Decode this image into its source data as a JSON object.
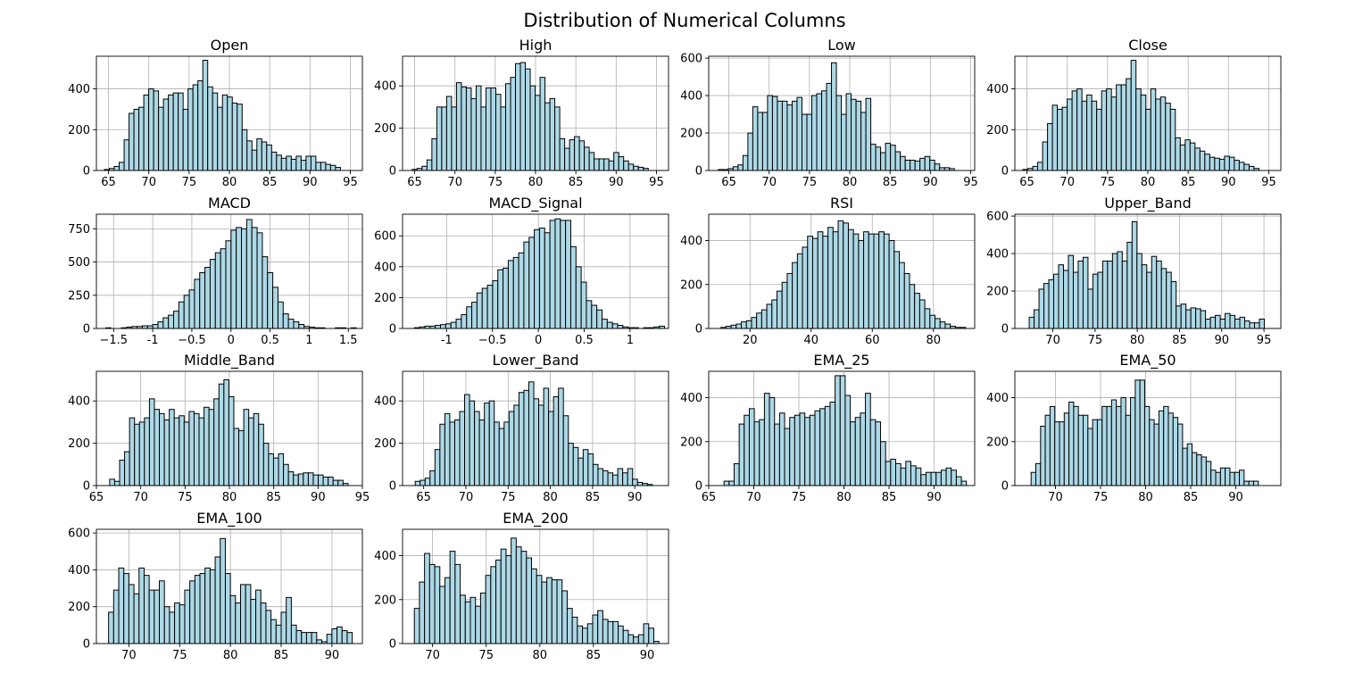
{
  "figure": {
    "title": "Distribution of Numerical Columns"
  },
  "style": {
    "bar_fill": "#add8e6",
    "bar_edge": "#000000",
    "grid": "#b0b0b0"
  },
  "chart_data": [
    {
      "type": "bar",
      "title": "Open",
      "xlim": [
        63.5,
        96.5
      ],
      "ylim": [
        0,
        560
      ],
      "grid": true,
      "xticks": [
        65,
        70,
        75,
        80,
        85,
        90,
        95
      ],
      "yticks": [
        0,
        200,
        400
      ],
      "bin_start": 64.5,
      "bin_width": 0.61,
      "values": [
        5,
        10,
        20,
        40,
        150,
        280,
        300,
        310,
        370,
        400,
        390,
        310,
        350,
        370,
        380,
        380,
        300,
        400,
        420,
        440,
        540,
        410,
        380,
        310,
        370,
        360,
        330,
        325,
        200,
        145,
        100,
        155,
        140,
        125,
        90,
        75,
        60,
        70,
        55,
        70,
        50,
        70,
        70,
        40,
        40,
        30,
        25,
        15
      ]
    },
    {
      "type": "bar",
      "title": "High",
      "xlim": [
        63.5,
        96.5
      ],
      "ylim": [
        0,
        540
      ],
      "grid": true,
      "xticks": [
        65,
        70,
        75,
        80,
        85,
        90,
        95
      ],
      "yticks": [
        0,
        200,
        400
      ],
      "bin_start": 64.7,
      "bin_width": 0.61,
      "values": [
        5,
        10,
        20,
        50,
        150,
        300,
        300,
        350,
        300,
        415,
        395,
        390,
        340,
        400,
        300,
        390,
        390,
        360,
        300,
        410,
        440,
        505,
        510,
        480,
        400,
        355,
        440,
        320,
        340,
        300,
        150,
        105,
        145,
        160,
        140,
        110,
        85,
        55,
        55,
        55,
        45,
        85,
        65,
        45,
        30,
        20,
        15,
        10
      ]
    },
    {
      "type": "bar",
      "title": "Low",
      "xlim": [
        62.5,
        95.5
      ],
      "ylim": [
        0,
        610
      ],
      "grid": true,
      "xticks": [
        65,
        70,
        75,
        80,
        85,
        90,
        95
      ],
      "yticks": [
        0,
        200,
        400,
        600
      ],
      "bin_start": 63.7,
      "bin_width": 0.61,
      "values": [
        5,
        5,
        10,
        20,
        30,
        80,
        200,
        340,
        310,
        310,
        400,
        395,
        370,
        370,
        350,
        370,
        390,
        300,
        300,
        400,
        410,
        425,
        465,
        575,
        400,
        300,
        410,
        380,
        370,
        310,
        385,
        140,
        125,
        95,
        145,
        135,
        100,
        75,
        55,
        55,
        50,
        65,
        75,
        55,
        35,
        15,
        15,
        10
      ]
    },
    {
      "type": "bar",
      "title": "Close",
      "xlim": [
        63.5,
        96.5
      ],
      "ylim": [
        0,
        560
      ],
      "grid": true,
      "xticks": [
        65,
        70,
        75,
        80,
        85,
        90,
        95
      ],
      "yticks": [
        0,
        200,
        400
      ],
      "bin_start": 64.5,
      "bin_width": 0.61,
      "values": [
        5,
        10,
        20,
        40,
        140,
        230,
        320,
        300,
        310,
        350,
        390,
        400,
        340,
        370,
        340,
        300,
        390,
        400,
        360,
        420,
        420,
        450,
        540,
        400,
        370,
        300,
        400,
        350,
        360,
        330,
        300,
        160,
        125,
        150,
        135,
        110,
        95,
        80,
        65,
        60,
        55,
        70,
        65,
        50,
        40,
        30,
        20,
        10
      ]
    },
    {
      "type": "bar",
      "title": "MACD",
      "xlim": [
        -1.72,
        1.68
      ],
      "ylim": [
        0,
        860
      ],
      "grid": true,
      "xticks": [
        -1.5,
        -1.0,
        -0.5,
        0.0,
        0.5,
        1.0,
        1.5
      ],
      "yticks": [
        0,
        250,
        500,
        750
      ],
      "bin_start": -1.6,
      "bin_width": 0.0667,
      "values": [
        5,
        0,
        0,
        5,
        10,
        15,
        15,
        20,
        20,
        30,
        50,
        80,
        100,
        130,
        200,
        250,
        290,
        370,
        420,
        460,
        520,
        570,
        600,
        660,
        740,
        760,
        750,
        820,
        760,
        720,
        540,
        420,
        310,
        200,
        110,
        70,
        50,
        30,
        15,
        10,
        5,
        5,
        0,
        0,
        5,
        5,
        0,
        5
      ]
    },
    {
      "type": "bar",
      "title": "MACD_Signal",
      "xlim": [
        -1.48,
        1.42
      ],
      "ylim": [
        0,
        740
      ],
      "grid": true,
      "xticks": [
        -1.0,
        -0.5,
        0.0,
        0.5,
        1.0
      ],
      "yticks": [
        0,
        200,
        400,
        600
      ],
      "bin_start": -1.35,
      "bin_width": 0.0568,
      "values": [
        5,
        10,
        15,
        15,
        20,
        25,
        30,
        40,
        60,
        90,
        140,
        170,
        230,
        260,
        280,
        310,
        380,
        390,
        440,
        460,
        490,
        560,
        590,
        640,
        650,
        620,
        700,
        710,
        700,
        700,
        530,
        400,
        300,
        180,
        150,
        120,
        60,
        40,
        30,
        20,
        10,
        5,
        5,
        0,
        5,
        5,
        10,
        15
      ]
    },
    {
      "type": "bar",
      "title": "RSI",
      "xlim": [
        6.5,
        93.5
      ],
      "ylim": [
        0,
        520
      ],
      "grid": true,
      "xticks": [
        20,
        40,
        60,
        80
      ],
      "yticks": [
        0,
        200,
        400
      ],
      "bin_start": 10.5,
      "bin_width": 1.667,
      "values": [
        5,
        10,
        15,
        20,
        30,
        35,
        50,
        70,
        85,
        110,
        130,
        170,
        210,
        250,
        300,
        340,
        370,
        420,
        410,
        440,
        420,
        460,
        440,
        490,
        480,
        450,
        430,
        400,
        440,
        430,
        430,
        440,
        430,
        400,
        350,
        300,
        250,
        200,
        160,
        130,
        90,
        60,
        45,
        30,
        20,
        10,
        5,
        5
      ]
    },
    {
      "type": "bar",
      "title": "Upper_Band",
      "xlim": [
        65.5,
        97.0
      ],
      "ylim": [
        0,
        610
      ],
      "grid": true,
      "xticks": [
        70,
        75,
        80,
        85,
        90,
        95
      ],
      "yticks": [
        0,
        200,
        400,
        600
      ],
      "bin_start": 67.2,
      "bin_width": 0.58,
      "values": [
        60,
        100,
        210,
        240,
        260,
        290,
        340,
        310,
        390,
        300,
        360,
        380,
        210,
        290,
        300,
        360,
        360,
        400,
        410,
        360,
        460,
        570,
        400,
        340,
        300,
        385,
        360,
        320,
        300,
        250,
        120,
        130,
        100,
        110,
        105,
        95,
        50,
        60,
        70,
        50,
        80,
        70,
        50,
        60,
        40,
        30,
        30,
        50
      ]
    },
    {
      "type": "bar",
      "title": "Middle_Band",
      "xlim": [
        65.0,
        95.0
      ],
      "ylim": [
        0,
        540
      ],
      "grid": true,
      "xticks": [
        65,
        70,
        75,
        80,
        85,
        90,
        95
      ],
      "yticks": [
        0,
        200,
        400
      ],
      "bin_start": 66.5,
      "bin_width": 0.56,
      "values": [
        30,
        20,
        120,
        160,
        320,
        290,
        300,
        320,
        410,
        360,
        340,
        310,
        360,
        320,
        330,
        300,
        350,
        340,
        320,
        370,
        360,
        410,
        480,
        500,
        420,
        270,
        260,
        360,
        320,
        340,
        290,
        200,
        150,
        130,
        150,
        100,
        65,
        50,
        55,
        60,
        60,
        50,
        50,
        40,
        40,
        25,
        25,
        10
      ]
    },
    {
      "type": "bar",
      "title": "Lower_Band",
      "xlim": [
        62.5,
        94.0
      ],
      "ylim": [
        0,
        540
      ],
      "grid": true,
      "xticks": [
        65,
        70,
        75,
        80,
        85,
        90
      ],
      "yticks": [
        0,
        200,
        400
      ],
      "bin_start": 64.0,
      "bin_width": 0.585,
      "values": [
        20,
        25,
        35,
        70,
        170,
        290,
        340,
        300,
        310,
        350,
        430,
        400,
        350,
        310,
        390,
        400,
        300,
        270,
        300,
        350,
        380,
        440,
        450,
        490,
        410,
        380,
        460,
        350,
        420,
        460,
        330,
        200,
        180,
        130,
        170,
        150,
        100,
        80,
        70,
        60,
        50,
        80,
        60,
        80,
        30,
        15,
        10,
        5
      ]
    },
    {
      "type": "bar",
      "title": "EMA_25",
      "xlim": [
        65.0,
        94.5
      ],
      "ylim": [
        0,
        520
      ],
      "grid": true,
      "xticks": [
        65,
        70,
        75,
        80,
        85,
        90
      ],
      "yticks": [
        0,
        200,
        400
      ],
      "bin_start": 66.7,
      "bin_width": 0.56,
      "values": [
        20,
        20,
        100,
        280,
        320,
        350,
        290,
        300,
        420,
        400,
        280,
        330,
        260,
        310,
        320,
        330,
        310,
        320,
        340,
        350,
        360,
        380,
        500,
        500,
        410,
        290,
        310,
        330,
        420,
        300,
        290,
        200,
        110,
        120,
        100,
        80,
        110,
        90,
        80,
        50,
        60,
        60,
        60,
        70,
        80,
        70,
        40,
        20
      ]
    },
    {
      "type": "bar",
      "title": "EMA_50",
      "xlim": [
        65.5,
        95.0
      ],
      "ylim": [
        0,
        520
      ],
      "grid": true,
      "xticks": [
        70,
        75,
        80,
        85,
        90
      ],
      "yticks": [
        0,
        200,
        400
      ],
      "bin_start": 67.3,
      "bin_width": 0.525,
      "values": [
        60,
        100,
        270,
        320,
        360,
        290,
        290,
        330,
        380,
        360,
        320,
        320,
        260,
        300,
        300,
        360,
        360,
        390,
        360,
        400,
        320,
        400,
        480,
        480,
        360,
        300,
        280,
        340,
        360,
        330,
        310,
        280,
        170,
        190,
        150,
        140,
        130,
        110,
        70,
        60,
        80,
        80,
        60,
        60,
        70,
        20,
        20,
        20
      ]
    },
    {
      "type": "bar",
      "title": "EMA_100",
      "xlim": [
        66.8,
        93.0
      ],
      "ylim": [
        0,
        620
      ],
      "grid": true,
      "xticks": [
        70,
        75,
        80,
        85,
        90
      ],
      "yticks": [
        0,
        200,
        400,
        600
      ],
      "bin_start": 68.0,
      "bin_width": 0.5,
      "values": [
        170,
        290,
        410,
        380,
        320,
        270,
        410,
        370,
        290,
        290,
        340,
        200,
        170,
        220,
        210,
        290,
        340,
        370,
        380,
        410,
        400,
        470,
        570,
        380,
        260,
        220,
        320,
        320,
        240,
        290,
        220,
        180,
        130,
        100,
        170,
        250,
        100,
        70,
        60,
        60,
        60,
        20,
        10,
        50,
        80,
        90,
        70,
        60
      ]
    },
    {
      "type": "bar",
      "title": "EMA_200",
      "xlim": [
        67.2,
        92.0
      ],
      "ylim": [
        0,
        520
      ],
      "grid": true,
      "xticks": [
        70,
        75,
        80,
        85,
        90
      ],
      "yticks": [
        0,
        200,
        400
      ],
      "bin_start": 68.3,
      "bin_width": 0.475,
      "values": [
        160,
        280,
        410,
        360,
        350,
        260,
        300,
        420,
        360,
        220,
        190,
        210,
        170,
        230,
        310,
        350,
        380,
        430,
        400,
        480,
        440,
        420,
        390,
        340,
        310,
        280,
        300,
        290,
        290,
        240,
        160,
        120,
        80,
        70,
        90,
        130,
        150,
        110,
        100,
        100,
        80,
        60,
        40,
        30,
        40,
        90,
        70,
        10
      ]
    }
  ]
}
